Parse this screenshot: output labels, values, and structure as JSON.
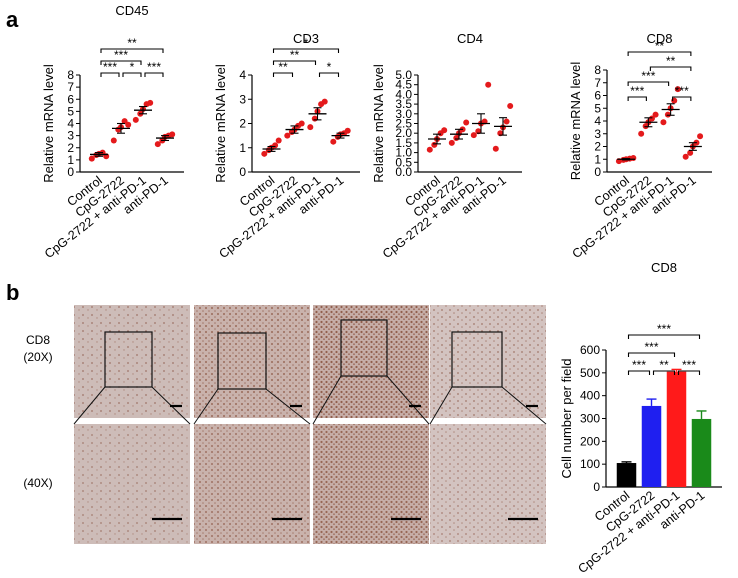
{
  "panel_labels": {
    "a": "a",
    "b": "b"
  },
  "colors": {
    "point": "#e41a1c",
    "bar_control": "#000000",
    "bar_cpg": "#1f1ff0",
    "bar_combo": "#ff1a1a",
    "bar_antipd1": "#1a8a1a",
    "axis": "#000000"
  },
  "micrographs": {
    "row_labels": [
      "CD8",
      "(20X)",
      "(40X)"
    ],
    "tissue_colors": [
      "#cdbcb8",
      "#c9b2ac",
      "#c6aea8",
      "#d3c3c0"
    ],
    "stain_color": "#7a3a24"
  },
  "chart_data": [
    {
      "id": "cd45",
      "type": "scatter",
      "title": "CD45",
      "ylabel": "Relative mRNA level",
      "ylim": [
        0,
        8
      ],
      "yticks": [
        "0",
        "1",
        "2",
        "3",
        "4",
        "5",
        "6",
        "7",
        "8"
      ],
      "categories": [
        "Control",
        "CpG-2722",
        "CpG-2722 + anti-PD-1",
        "anti-PD-1"
      ],
      "groups": [
        {
          "mean": 1.45,
          "sem": 0.15,
          "points": [
            1.1,
            1.4,
            1.5,
            1.6,
            1.3
          ]
        },
        {
          "mean": 3.6,
          "sem": 0.4,
          "points": [
            2.6,
            3.5,
            3.7,
            4.2,
            3.9
          ]
        },
        {
          "mean": 5.1,
          "sem": 0.3,
          "points": [
            4.3,
            4.8,
            5.2,
            5.6,
            5.7
          ]
        },
        {
          "mean": 2.8,
          "sem": 0.2,
          "points": [
            2.3,
            2.6,
            2.9,
            3.0,
            3.1
          ]
        }
      ],
      "brackets": [
        {
          "from": 0,
          "to": 1,
          "label": "***",
          "level": 0
        },
        {
          "from": 1,
          "to": 2,
          "label": "*",
          "level": 0
        },
        {
          "from": 2,
          "to": 3,
          "label": "***",
          "level": 0
        },
        {
          "from": 0,
          "to": 2,
          "label": "***",
          "level": 1
        },
        {
          "from": 0,
          "to": 3,
          "label": "**",
          "level": 2
        }
      ]
    },
    {
      "id": "cd3",
      "type": "scatter",
      "title": "CD3",
      "ylabel": "Relative mRNA level",
      "ylim": [
        0,
        4
      ],
      "yticks": [
        "0",
        "1",
        "2",
        "3",
        "4"
      ],
      "categories": [
        "Control",
        "CpG-2722",
        "CpG-2722 + anti-PD-1",
        "anti-PD-1"
      ],
      "groups": [
        {
          "mean": 0.95,
          "sem": 0.1,
          "points": [
            0.75,
            0.9,
            1.0,
            1.1,
            1.3
          ]
        },
        {
          "mean": 1.75,
          "sem": 0.15,
          "points": [
            1.5,
            1.65,
            1.75,
            1.9,
            2.0
          ]
        },
        {
          "mean": 2.4,
          "sem": 0.25,
          "points": [
            1.85,
            2.2,
            2.5,
            2.8,
            2.9
          ]
        },
        {
          "mean": 1.5,
          "sem": 0.1,
          "points": [
            1.25,
            1.45,
            1.55,
            1.6,
            1.7
          ]
        }
      ],
      "brackets": [
        {
          "from": 0,
          "to": 1,
          "label": "**",
          "level": 0
        },
        {
          "from": 2,
          "to": 3,
          "label": "*",
          "level": 0
        },
        {
          "from": 0,
          "to": 2,
          "label": "**",
          "level": 1
        },
        {
          "from": 0,
          "to": 3,
          "label": "*",
          "level": 2
        }
      ]
    },
    {
      "id": "cd4",
      "type": "scatter",
      "title": "CD4",
      "ylabel": "Relative mRNA level",
      "ylim": [
        0,
        5
      ],
      "yticks": [
        "0.0",
        "0.5",
        "1.0",
        "1.5",
        "2.0",
        "2.5",
        "3.0",
        "3.5",
        "4.0",
        "4.5",
        "5.0"
      ],
      "categories": [
        "Control",
        "CpG-2722",
        "CpG-2722 + anti-PD-1",
        "anti-PD-1"
      ],
      "groups": [
        {
          "mean": 1.7,
          "sem": 0.25,
          "points": [
            1.15,
            1.4,
            1.7,
            2.0,
            2.15
          ]
        },
        {
          "mean": 1.95,
          "sem": 0.25,
          "points": [
            1.5,
            1.75,
            2.0,
            2.2,
            2.55
          ]
        },
        {
          "mean": 2.5,
          "sem": 0.5,
          "points": [
            1.9,
            2.1,
            2.5,
            2.6,
            4.5
          ]
        },
        {
          "mean": 2.35,
          "sem": 0.45,
          "points": [
            1.2,
            2.0,
            2.3,
            2.6,
            3.4
          ]
        }
      ],
      "brackets": []
    },
    {
      "id": "cd8",
      "type": "scatter",
      "title": "CD8",
      "ylabel": "Relative mRNA level",
      "ylim": [
        0,
        8
      ],
      "yticks": [
        "0",
        "1",
        "2",
        "3",
        "4",
        "5",
        "6",
        "7",
        "8"
      ],
      "categories": [
        "Control",
        "CpG-2722",
        "CpG-2722 + anti-PD-1",
        "anti-PD-1"
      ],
      "groups": [
        {
          "mean": 1.0,
          "sem": 0.05,
          "points": [
            0.85,
            0.95,
            1.0,
            1.05,
            1.1
          ]
        },
        {
          "mean": 3.9,
          "sem": 0.35,
          "points": [
            3.0,
            3.6,
            3.9,
            4.2,
            4.5
          ]
        },
        {
          "mean": 4.9,
          "sem": 0.45,
          "points": [
            3.9,
            4.5,
            5.0,
            5.6,
            6.5
          ]
        },
        {
          "mean": 2.0,
          "sem": 0.3,
          "points": [
            1.2,
            1.5,
            2.0,
            2.3,
            2.8
          ]
        }
      ],
      "brackets": [
        {
          "from": 0,
          "to": 1,
          "label": "***",
          "level": 0
        },
        {
          "from": 2,
          "to": 3,
          "label": "***",
          "level": 0
        },
        {
          "from": 0,
          "to": 2,
          "label": "***",
          "level": 1
        },
        {
          "from": 1,
          "to": 3,
          "label": "**",
          "level": 2
        },
        {
          "from": 0,
          "to": 3,
          "label": "**",
          "level": 3
        }
      ]
    },
    {
      "id": "cd8_bar",
      "type": "bar",
      "title": "CD8",
      "ylabel": "Cell number per field",
      "ylim": [
        0,
        600
      ],
      "yticks": [
        "0",
        "100",
        "200",
        "300",
        "400",
        "500",
        "600"
      ],
      "categories": [
        "Control",
        "CpG-2722",
        "CpG-2722 + anti-PD-1",
        "anti-PD-1"
      ],
      "values": [
        105,
        355,
        505,
        298
      ],
      "errors": [
        5,
        30,
        10,
        35
      ],
      "brackets": [
        {
          "from": 0,
          "to": 1,
          "label": "***",
          "level": 0
        },
        {
          "from": 1,
          "to": 2,
          "label": "**",
          "level": 0
        },
        {
          "from": 2,
          "to": 3,
          "label": "***",
          "level": 0
        },
        {
          "from": 0,
          "to": 2,
          "label": "***",
          "level": 1
        },
        {
          "from": 0,
          "to": 3,
          "label": "***",
          "level": 2
        }
      ]
    }
  ]
}
